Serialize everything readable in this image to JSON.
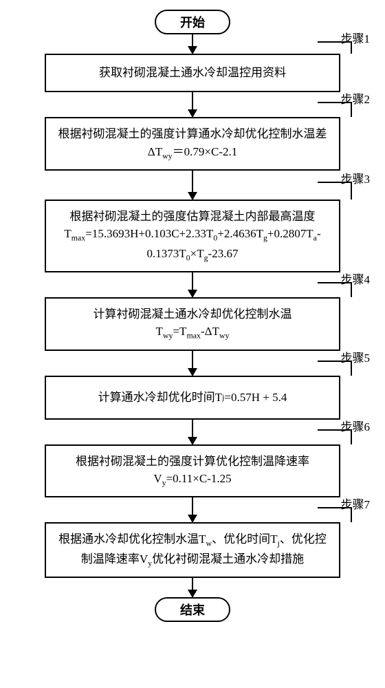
{
  "diagram": {
    "type": "flowchart",
    "background_color": "#ffffff",
    "border_color": "#000000",
    "font_family": "SimSun",
    "start_label": "开始",
    "end_label": "结束",
    "step_label_prefix": "步骤",
    "steps": [
      {
        "num": "1",
        "text": "获取衬砌混凝土通水冷却温控用资料"
      },
      {
        "num": "2",
        "text_html": "根据衬砌混凝土的强度计算通水冷却优化控制水温差<br>ΔT<sub>wy</sub>＝0.79×C-2.1"
      },
      {
        "num": "3",
        "text_html": "根据衬砌混凝土的强度估算混凝土内部最高温度<br>T<sub>max</sub>=15.3693H+0.103C+2.33T<sub>0</sub>+2.4636T<sub>g</sub>+0.2807T<sub>a</sub>-<br>0.1373T<sub>0</sub>×T<sub>g</sub>-23.67"
      },
      {
        "num": "4",
        "text_html": "计算衬砌混凝土通水冷却优化控制水温<br>T<sub>wy</sub>=T<sub>max</sub>-ΔT<sub>wy</sub>"
      },
      {
        "num": "5",
        "text_html": "计算通水冷却优化时间T<sub>j</sub>=0.57H + 5.4"
      },
      {
        "num": "6",
        "text_html": "根据衬砌混凝土的强度计算优化控制温降速率<br>V<sub>y</sub>=0.11×C-1.25"
      },
      {
        "num": "7",
        "text_html": "根据通水冷却优化控制水温T<sub>w</sub>、优化时间T<sub>j</sub>、优化控<br>制温降速率V<sub>y</sub>优化衬砌混凝土通水冷却措施"
      }
    ],
    "arrow_heights": [
      28,
      36,
      42,
      36,
      36,
      36,
      36,
      28
    ],
    "label_line_heights": [
      18,
      22,
      26,
      22,
      22,
      22,
      22
    ]
  }
}
